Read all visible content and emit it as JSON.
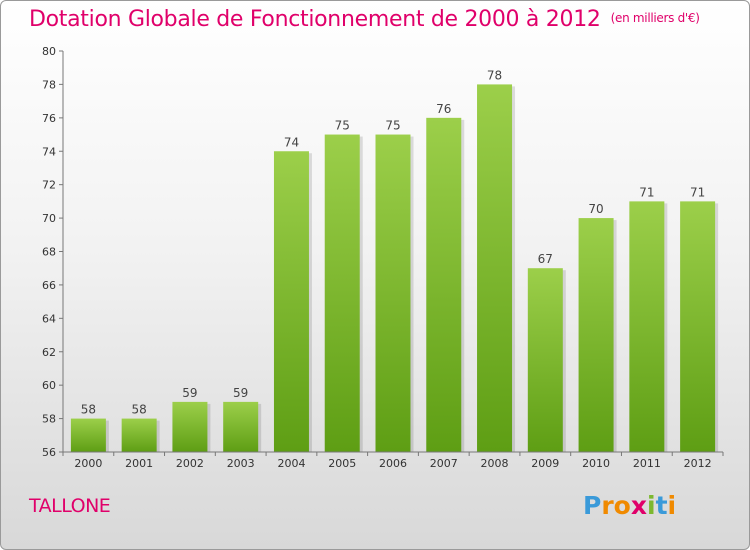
{
  "header": {
    "title": "Dotation Globale de Fonctionnement de 2000 à 2012",
    "subtitle": "(en milliers d'€)"
  },
  "commune": "TALLONE",
  "logo": {
    "text": "Proxiti",
    "letter_colors": [
      "#3a9ad9",
      "#f08a00",
      "#f08a00",
      "#e0006a",
      "#7cb82f",
      "#3a9ad9",
      "#f08a00"
    ]
  },
  "chart_data": {
    "type": "bar",
    "categories": [
      "2000",
      "2001",
      "2002",
      "2003",
      "2004",
      "2005",
      "2006",
      "2007",
      "2008",
      "2009",
      "2010",
      "2011",
      "2012"
    ],
    "values": [
      58,
      58,
      59,
      59,
      74,
      75,
      75,
      76,
      78,
      67,
      70,
      71,
      71
    ],
    "ylim": [
      56,
      80
    ],
    "yticks": [
      56,
      58,
      60,
      62,
      64,
      66,
      68,
      70,
      72,
      74,
      76,
      78,
      80
    ],
    "grid": false,
    "bar_color_top": "#9ccf4a",
    "bar_color_bottom": "#5e9e14"
  }
}
